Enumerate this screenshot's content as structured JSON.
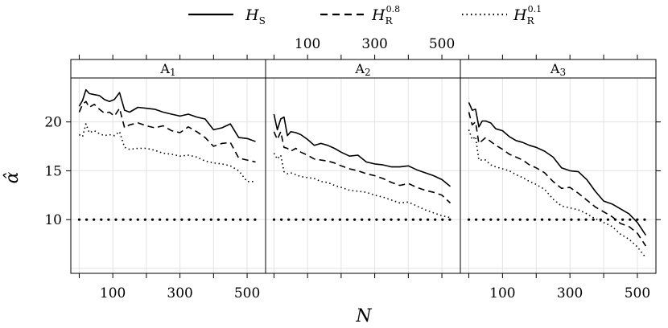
{
  "chart_data": {
    "type": "line",
    "xlabel": "N",
    "ylabel": "α̂",
    "xlim": [
      -25,
      555
    ],
    "ylim": [
      4.5,
      24.5
    ],
    "x_ticks": [
      100,
      300,
      500
    ],
    "x_minor": [
      0,
      200,
      400
    ],
    "y_ticks": [
      10,
      15,
      20
    ],
    "grid": true,
    "legend": [
      {
        "key": "HS",
        "symbol": "H",
        "sub": "S",
        "sup": "",
        "dash": "solid"
      },
      {
        "key": "HR08",
        "symbol": "H",
        "sub": "R",
        "sup": "0.8",
        "dash": "dashed"
      },
      {
        "key": "HR01",
        "symbol": "H",
        "sub": "R",
        "sup": "0.1",
        "dash": "dotted"
      }
    ],
    "reference_line": {
      "y": 10,
      "style": "thick-dotted"
    },
    "panels": [
      {
        "label": "A",
        "sub": "1",
        "series": [
          {
            "key": "HS",
            "x": [
              0,
              10,
              20,
              30,
              45,
              60,
              75,
              90,
              105,
              120,
              135,
              150,
              175,
              200,
              225,
              250,
              275,
              300,
              325,
              350,
              375,
              400,
              425,
              450,
              475,
              500,
              525
            ],
            "y": [
              21.6,
              22.2,
              23.3,
              22.9,
              22.8,
              22.7,
              22.3,
              22.1,
              22.3,
              23.0,
              21.2,
              21.0,
              21.5,
              21.4,
              21.3,
              21.0,
              20.8,
              20.6,
              20.8,
              20.5,
              20.3,
              19.2,
              19.4,
              19.8,
              18.4,
              18.3,
              18.0
            ]
          },
          {
            "key": "HR08",
            "x": [
              0,
              10,
              20,
              30,
              45,
              60,
              75,
              90,
              105,
              120,
              135,
              150,
              175,
              200,
              225,
              250,
              275,
              300,
              325,
              350,
              375,
              400,
              425,
              450,
              475,
              500,
              525
            ],
            "y": [
              21.0,
              21.8,
              22.1,
              21.5,
              21.8,
              21.3,
              20.9,
              21.0,
              20.6,
              21.4,
              19.4,
              19.7,
              19.9,
              19.6,
              19.4,
              19.6,
              19.1,
              18.9,
              19.5,
              19.0,
              18.4,
              17.5,
              17.8,
              17.9,
              16.3,
              16.1,
              15.9
            ]
          },
          {
            "key": "HR01",
            "x": [
              0,
              10,
              20,
              30,
              45,
              60,
              75,
              90,
              105,
              120,
              135,
              150,
              175,
              200,
              225,
              250,
              275,
              300,
              325,
              350,
              375,
              400,
              425,
              450,
              475,
              500,
              525
            ],
            "y": [
              18.7,
              18.5,
              19.8,
              18.9,
              19.1,
              18.8,
              18.6,
              18.7,
              18.6,
              19.0,
              17.4,
              17.2,
              17.3,
              17.3,
              17.1,
              16.8,
              16.7,
              16.5,
              16.6,
              16.4,
              16.0,
              15.8,
              15.7,
              15.5,
              15.0,
              13.9,
              13.9
            ]
          }
        ]
      },
      {
        "label": "A",
        "sub": "2",
        "series": [
          {
            "key": "HS",
            "x": [
              0,
              10,
              20,
              30,
              40,
              50,
              65,
              80,
              100,
              120,
              140,
              160,
              180,
              200,
              225,
              250,
              275,
              300,
              325,
              350,
              375,
              400,
              425,
              450,
              475,
              500,
              525
            ],
            "y": [
              20.8,
              19.2,
              20.3,
              20.5,
              18.6,
              19.0,
              18.9,
              18.7,
              18.2,
              17.6,
              17.8,
              17.6,
              17.3,
              16.9,
              16.5,
              16.6,
              15.9,
              15.7,
              15.6,
              15.4,
              15.4,
              15.5,
              15.1,
              14.8,
              14.5,
              14.1,
              13.4
            ]
          },
          {
            "key": "HR08",
            "x": [
              0,
              10,
              20,
              30,
              40,
              50,
              65,
              80,
              100,
              120,
              140,
              160,
              180,
              200,
              225,
              250,
              275,
              300,
              325,
              350,
              375,
              400,
              425,
              450,
              475,
              500,
              525
            ],
            "y": [
              19.0,
              18.2,
              19.0,
              17.4,
              17.3,
              17.0,
              17.3,
              16.9,
              16.6,
              16.2,
              16.1,
              16.0,
              15.8,
              15.5,
              15.2,
              15.0,
              14.7,
              14.5,
              14.2,
              13.8,
              13.5,
              13.7,
              13.3,
              13.0,
              12.8,
              12.5,
              11.7
            ]
          },
          {
            "key": "HR01",
            "x": [
              0,
              10,
              20,
              30,
              40,
              50,
              65,
              80,
              100,
              120,
              140,
              160,
              180,
              200,
              225,
              250,
              275,
              300,
              325,
              350,
              375,
              400,
              425,
              450,
              475,
              500,
              525
            ],
            "y": [
              16.8,
              16.2,
              16.6,
              14.9,
              14.7,
              14.8,
              14.6,
              14.4,
              14.3,
              14.2,
              13.9,
              13.8,
              13.5,
              13.3,
              13.0,
              12.9,
              12.8,
              12.5,
              12.3,
              12.0,
              11.7,
              11.8,
              11.4,
              11.0,
              10.7,
              10.4,
              10.2
            ]
          }
        ]
      },
      {
        "label": "A",
        "sub": "3",
        "series": [
          {
            "key": "HS",
            "x": [
              0,
              10,
              20,
              30,
              40,
              50,
              65,
              80,
              100,
              120,
              140,
              160,
              180,
              200,
              225,
              250,
              275,
              300,
              325,
              350,
              375,
              400,
              425,
              450,
              475,
              500,
              525
            ],
            "y": [
              22.0,
              21.2,
              21.3,
              19.5,
              20.1,
              20.1,
              19.9,
              19.3,
              19.1,
              18.5,
              18.1,
              17.9,
              17.6,
              17.4,
              17.0,
              16.4,
              15.3,
              15.0,
              14.9,
              14.1,
              12.9,
              11.9,
              11.6,
              11.1,
              10.6,
              9.7,
              8.4
            ]
          },
          {
            "key": "HR08",
            "x": [
              0,
              10,
              20,
              30,
              40,
              50,
              65,
              80,
              100,
              120,
              140,
              160,
              180,
              200,
              225,
              250,
              275,
              300,
              325,
              350,
              375,
              400,
              425,
              450,
              475,
              500,
              525
            ],
            "y": [
              21.0,
              19.7,
              20.0,
              17.8,
              18.1,
              18.4,
              18.0,
              17.6,
              17.2,
              16.7,
              16.4,
              16.1,
              15.6,
              15.3,
              14.8,
              13.9,
              13.2,
              13.3,
              12.7,
              12.0,
              11.3,
              10.8,
              10.3,
              9.6,
              9.3,
              8.6,
              7.3
            ]
          },
          {
            "key": "HR01",
            "x": [
              0,
              10,
              20,
              30,
              40,
              50,
              65,
              80,
              100,
              120,
              140,
              160,
              180,
              200,
              225,
              250,
              275,
              300,
              325,
              350,
              375,
              400,
              425,
              450,
              475,
              500,
              525
            ],
            "y": [
              19.2,
              18.2,
              18.5,
              16.1,
              16.1,
              16.1,
              15.6,
              15.4,
              15.2,
              15.0,
              14.6,
              14.3,
              13.9,
              13.6,
              13.1,
              12.1,
              11.4,
              11.2,
              11.0,
              10.6,
              10.1,
              9.7,
              9.3,
              8.5,
              8.0,
              7.2,
              6.1
            ]
          }
        ]
      }
    ]
  }
}
